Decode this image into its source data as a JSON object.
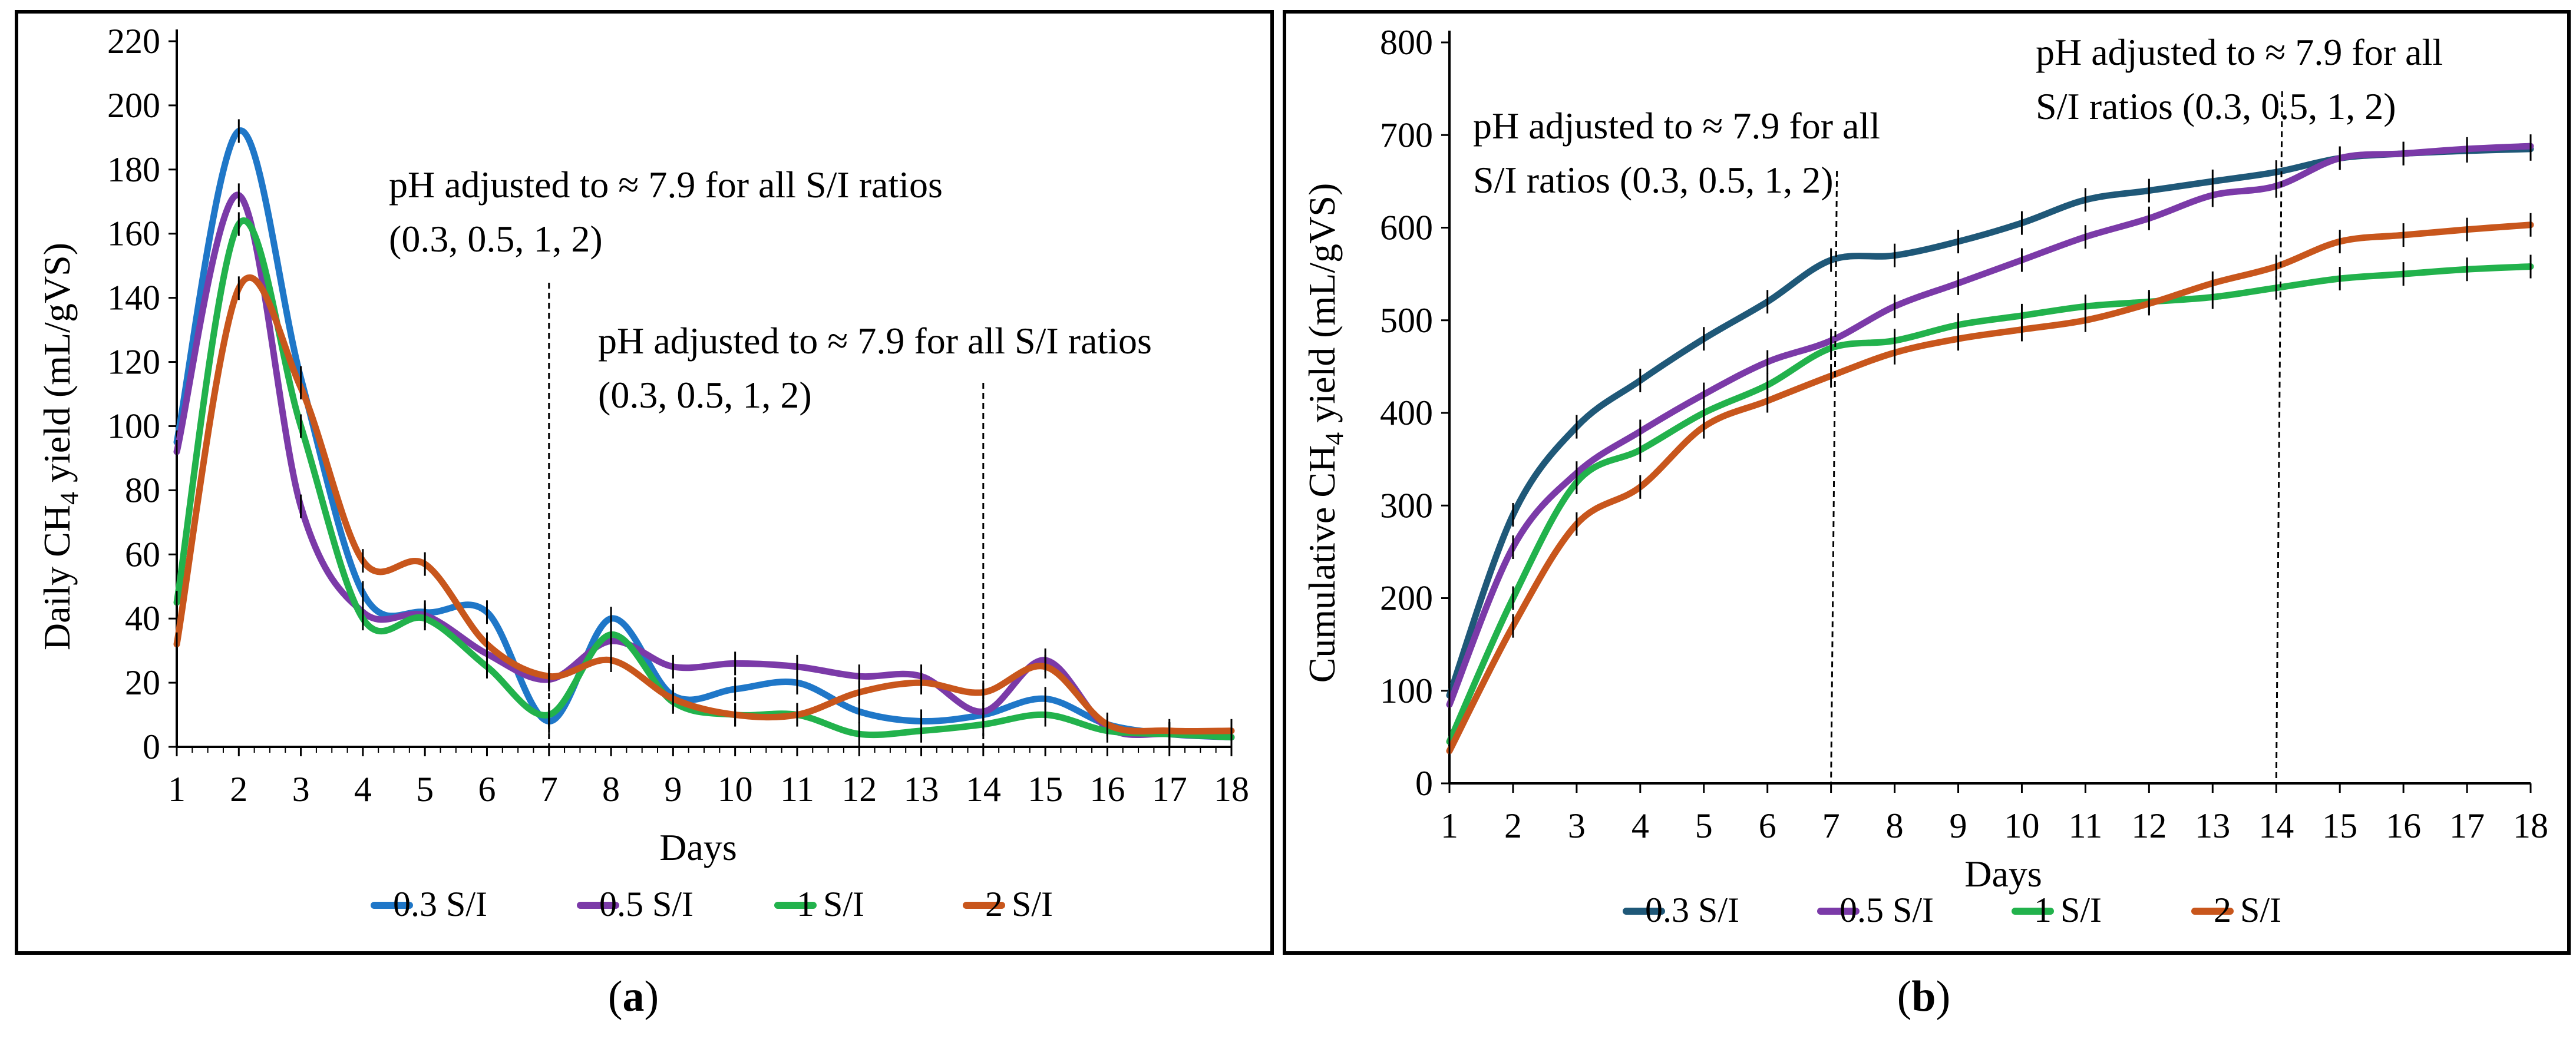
{
  "figure": {
    "panel_labels": [
      {
        "open": "(",
        "letter": "a",
        "close": ")"
      },
      {
        "open": "(",
        "letter": "b",
        "close": ")"
      }
    ]
  },
  "legend": {
    "series_colors": [
      "#1f77c8",
      "#7b3aa8",
      "#22b24c",
      "#c8561c"
    ],
    "series_colors_b": [
      "#1f5878",
      "#7b3aa8",
      "#22b24c",
      "#c8561c"
    ]
  },
  "chart_data": [
    {
      "type": "line",
      "panel": "a",
      "title": "",
      "xlabel": "Days",
      "ylabel_prefix": "Daily CH",
      "ylabel_sub": "4",
      "ylabel_suffix": " yield (mL/gVS)",
      "xlim": [
        1,
        18
      ],
      "ylim": [
        0,
        220
      ],
      "xticks": [
        1,
        2,
        3,
        4,
        5,
        6,
        7,
        8,
        9,
        10,
        11,
        12,
        13,
        14,
        15,
        16,
        17,
        18
      ],
      "yticks": [
        0,
        20,
        40,
        60,
        80,
        100,
        120,
        140,
        160,
        180,
        200,
        220
      ],
      "x": [
        1,
        2,
        3,
        4,
        5,
        6,
        7,
        8,
        9,
        10,
        11,
        12,
        13,
        14,
        15,
        16,
        17,
        18
      ],
      "series": [
        {
          "name": "0.3 S/I",
          "values": [
            95,
            192,
            115,
            48,
            42,
            42,
            8,
            40,
            16,
            18,
            20,
            11,
            8,
            10,
            15,
            7,
            4,
            3
          ]
        },
        {
          "name": "0.5 S/I",
          "values": [
            92,
            172,
            75,
            42,
            41,
            29,
            21,
            33,
            25,
            26,
            25,
            22,
            22,
            11,
            27,
            6,
            4,
            3
          ]
        },
        {
          "name": "1 S/I",
          "values": [
            45,
            163,
            100,
            40,
            40,
            25,
            10,
            35,
            14,
            10,
            10,
            4,
            5,
            7,
            10,
            5,
            4,
            3
          ]
        },
        {
          "name": "2 S/I",
          "values": [
            32,
            143,
            112,
            58,
            57,
            32,
            22,
            27,
            15,
            10,
            10,
            17,
            20,
            17,
            25,
            7,
            5,
            5
          ]
        }
      ],
      "annotations": [
        {
          "line1": "pH adjusted to ≈ 7.9 for all S/I ratios",
          "line2": "(0.3, 0.5, 1, 2)",
          "at_day": 7
        },
        {
          "line1": "pH adjusted to ≈ 7.9 for all S/I ratios",
          "line2": "(0.3, 0.5, 1, 2)",
          "at_day": 14
        }
      ],
      "legend_position": "bottom"
    },
    {
      "type": "line",
      "panel": "b",
      "title": "",
      "xlabel": "Days",
      "ylabel_prefix": "Cumulative CH",
      "ylabel_sub": "4",
      "ylabel_suffix": " yield (mL/gVS)",
      "xlim": [
        1,
        18
      ],
      "ylim": [
        0,
        800
      ],
      "xticks": [
        1,
        2,
        3,
        4,
        5,
        6,
        7,
        8,
        9,
        10,
        11,
        12,
        13,
        14,
        15,
        16,
        17,
        18
      ],
      "yticks": [
        0,
        100,
        200,
        300,
        400,
        500,
        600,
        700,
        800
      ],
      "x": [
        1,
        2,
        3,
        4,
        5,
        6,
        7,
        8,
        9,
        10,
        11,
        12,
        13,
        14,
        15,
        16,
        17,
        18
      ],
      "series": [
        {
          "name": "0.3 S/I",
          "values": [
            95,
            290,
            385,
            435,
            480,
            520,
            565,
            570,
            585,
            605,
            630,
            640,
            650,
            660,
            675,
            680,
            683,
            685
          ]
        },
        {
          "name": "0.5 S/I",
          "values": [
            85,
            255,
            335,
            380,
            420,
            455,
            478,
            515,
            540,
            565,
            590,
            610,
            635,
            645,
            675,
            680,
            685,
            688
          ]
        },
        {
          "name": "1 S/I",
          "values": [
            45,
            200,
            325,
            360,
            400,
            430,
            470,
            478,
            495,
            505,
            515,
            520,
            525,
            535,
            545,
            550,
            555,
            558
          ]
        },
        {
          "name": "2 S/I",
          "values": [
            35,
            170,
            280,
            320,
            385,
            413,
            440,
            465,
            480,
            490,
            500,
            518,
            540,
            558,
            585,
            592,
            598,
            603
          ]
        }
      ],
      "annotations": [
        {
          "line1": "pH adjusted to ≈ 7.9 for all",
          "line2": "S/I ratios (0.3, 0.5, 1, 2)",
          "at_day": 7
        },
        {
          "line1": "pH adjusted to ≈ 7.9 for all",
          "line2": "S/I ratios (0.3, 0.5, 1, 2)",
          "at_day": 14
        }
      ],
      "legend_position": "bottom"
    }
  ]
}
